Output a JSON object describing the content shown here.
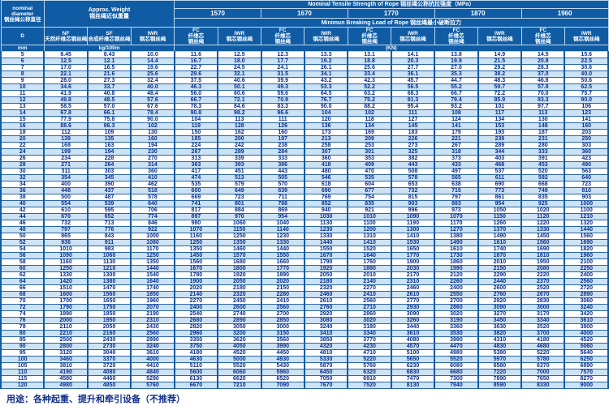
{
  "header": {
    "diameter": {
      "en1": "nominal",
      "en2": "diameter",
      "zh": "钢丝绳公称直径",
      "symbol": "D",
      "unit": "mm"
    },
    "weight": {
      "en": "Approx. Weight",
      "zh": "钢丝绳近似重量",
      "unit": "kg/100m",
      "columns": [
        {
          "abbr": "NF",
          "zh": "天然纤维芯钢丝绳"
        },
        {
          "abbr": "SF",
          "zh": "合成纤维芯钢丝绳"
        },
        {
          "abbr": "IWR",
          "zh": "钢芯钢丝绳"
        }
      ]
    },
    "strength": {
      "title": "Nominal Tensile Strength of Rope 钢丝绳公称抗拉强度（MPa）",
      "breaking": "Minimun Breaking Load of Rope 钢丝绳最小破断拉力",
      "unit": "(KN)",
      "grades": [
        "1570",
        "1670",
        "1770",
        "1870",
        "1960"
      ],
      "sub": [
        {
          "abbr": "FC",
          "lines": [
            "纤维芯",
            "钢丝绳"
          ]
        },
        {
          "abbr": "IWR",
          "lines": [
            "钢芯钢丝绳"
          ]
        }
      ]
    }
  },
  "table": {
    "column_order": [
      "D",
      "NF",
      "SF",
      "IWR",
      "1570-FC",
      "1570-IWR",
      "1670-FC",
      "1670-IWR",
      "1770-FC",
      "1770-IWR",
      "1870-FC",
      "1870-IWR",
      "1960-FC",
      "1960-IWR"
    ],
    "rows": [
      [
        "5",
        "8.45",
        "8.43",
        "10.0",
        "11.6",
        "12.5",
        "12.3",
        "13.3",
        "13.1",
        "14.1",
        "13.8",
        "14.9",
        "14.5",
        "15.6"
      ],
      [
        "6",
        "12.5",
        "12.1",
        "14.4",
        "16.7",
        "18.0",
        "17.7",
        "19.2",
        "18.8",
        "20.3",
        "19.9",
        "21.5",
        "20.8",
        "22.5"
      ],
      [
        "7",
        "17.0",
        "16.5",
        "19.6",
        "22.7",
        "24.5",
        "24.1",
        "26.1",
        "25.6",
        "27.7",
        "27.0",
        "29.2",
        "28.3",
        "30.6"
      ],
      [
        "8",
        "22.1",
        "21.6",
        "25.6",
        "29.6",
        "32.1",
        "31.5",
        "34.1",
        "33.4",
        "36.1",
        "35.3",
        "38.2",
        "37.0",
        "40.0"
      ],
      [
        "9",
        "28.0",
        "27.3",
        "32.4",
        "37.5",
        "40.6",
        "39.9",
        "43.2",
        "42.3",
        "45.7",
        "44.7",
        "48.3",
        "46.8",
        "50.6"
      ],
      [
        "10",
        "34.6",
        "33.7",
        "40.0",
        "46.3",
        "50.1",
        "49.3",
        "53.3",
        "52.2",
        "56.5",
        "55.2",
        "59.7",
        "57.8",
        "62.5"
      ],
      [
        "11",
        "41.9",
        "40.8",
        "48.4",
        "56.0",
        "60.6",
        "59.6",
        "64.5",
        "63.2",
        "68.3",
        "66.7",
        "72.2",
        "70.0",
        "75.7"
      ],
      [
        "12",
        "49.8",
        "48.5",
        "57.6",
        "66.7",
        "72.1",
        "70.9",
        "76.7",
        "75.2",
        "81.3",
        "79.4",
        "85.9",
        "83.3",
        "90.0"
      ],
      [
        "13",
        "58.5",
        "57.0",
        "67.6",
        "78.3",
        "84.6",
        "83.3",
        "90.0",
        "88.2",
        "95.4",
        "93.2",
        "101",
        "97.7",
        "106"
      ],
      [
        "14",
        "67.8",
        "66.1",
        "78.4",
        "90.8",
        "98.2",
        "96.6",
        "104",
        "102",
        "111",
        "108",
        "117",
        "113",
        "123"
      ],
      [
        "15",
        "77.9",
        "75.8",
        "90.0",
        "104",
        "113",
        "111",
        "120",
        "118",
        "127",
        "124",
        "134",
        "130",
        "141"
      ],
      [
        "16",
        "88.6",
        "86.3",
        "102",
        "119",
        "128",
        "126",
        "136",
        "134",
        "145",
        "141",
        "153",
        "148",
        "160"
      ],
      [
        "18",
        "112",
        "109",
        "130",
        "150",
        "162",
        "160",
        "173",
        "169",
        "183",
        "179",
        "193",
        "187",
        "203"
      ],
      [
        "20",
        "138",
        "135",
        "160",
        "185",
        "200",
        "197",
        "213",
        "209",
        "226",
        "221",
        "239",
        "231",
        "250"
      ],
      [
        "22",
        "168",
        "163",
        "194",
        "224",
        "242",
        "238",
        "258",
        "253",
        "273",
        "267",
        "289",
        "280",
        "303"
      ],
      [
        "24",
        "199",
        "194",
        "230",
        "267",
        "289",
        "284",
        "307",
        "301",
        "325",
        "318",
        "344",
        "333",
        "360"
      ],
      [
        "26",
        "234",
        "228",
        "270",
        "313",
        "339",
        "333",
        "360",
        "353",
        "382",
        "373",
        "403",
        "391",
        "423"
      ],
      [
        "28",
        "271",
        "264",
        "314",
        "363",
        "393",
        "386",
        "418",
        "409",
        "443",
        "433",
        "468",
        "453",
        "490"
      ],
      [
        "30",
        "311",
        "303",
        "360",
        "417",
        "451",
        "443",
        "480",
        "470",
        "508",
        "497",
        "537",
        "520",
        "563"
      ],
      [
        "32",
        "354",
        "345",
        "410",
        "474",
        "513",
        "505",
        "546",
        "535",
        "578",
        "565",
        "611",
        "592",
        "640"
      ],
      [
        "34",
        "400",
        "390",
        "462",
        "535",
        "579",
        "570",
        "618",
        "604",
        "653",
        "638",
        "690",
        "668",
        "723"
      ],
      [
        "36",
        "448",
        "437",
        "518",
        "600",
        "649",
        "639",
        "690",
        "677",
        "732",
        "715",
        "773",
        "749",
        "810"
      ],
      [
        "38",
        "500",
        "487",
        "578",
        "669",
        "723",
        "711",
        "769",
        "754",
        "815",
        "797",
        "861",
        "835",
        "903"
      ],
      [
        "40",
        "554",
        "539",
        "640",
        "741",
        "801",
        "788",
        "852",
        "835",
        "903",
        "883",
        "954",
        "925",
        "1000"
      ],
      [
        "42",
        "610",
        "595",
        "706",
        "817",
        "884",
        "869",
        "940",
        "921",
        "996",
        "973",
        "1050",
        "1020",
        "1100"
      ],
      [
        "44",
        "670",
        "652",
        "774",
        "897",
        "970",
        "954",
        "1030",
        "1010",
        "1090",
        "1070",
        "1150",
        "1120",
        "1210"
      ],
      [
        "46",
        "732",
        "713",
        "846",
        "980",
        "1060",
        "1040",
        "1130",
        "1100",
        "1190",
        "1170",
        "1260",
        "1220",
        "1320"
      ],
      [
        "48",
        "797",
        "776",
        "922",
        "1070",
        "1150",
        "1140",
        "1230",
        "1200",
        "1300",
        "1270",
        "1370",
        "1330",
        "1440"
      ],
      [
        "50",
        "865",
        "843",
        "1000",
        "1160",
        "1250",
        "1230",
        "1330",
        "1310",
        "1410",
        "1380",
        "1490",
        "1450",
        "1560"
      ],
      [
        "52",
        "936",
        "911",
        "1080",
        "1250",
        "1350",
        "1330",
        "1440",
        "1410",
        "1530",
        "1490",
        "1610",
        "1560",
        "1690"
      ],
      [
        "54",
        "1010",
        "983",
        "1170",
        "1350",
        "1460",
        "1440",
        "1550",
        "1520",
        "1650",
        "1610",
        "1740",
        "1690",
        "1820"
      ],
      [
        "56",
        "1090",
        "1060",
        "1250",
        "1450",
        "1570",
        "1550",
        "1670",
        "1640",
        "1770",
        "1730",
        "1870",
        "1810",
        "1960"
      ],
      [
        "58",
        "1160",
        "1130",
        "1350",
        "1560",
        "1680",
        "1660",
        "1790",
        "1760",
        "1900",
        "1860",
        "2010",
        "1950",
        "2100"
      ],
      [
        "60",
        "1250",
        "1210",
        "1440",
        "1670",
        "1800",
        "1770",
        "1920",
        "1880",
        "2030",
        "1990",
        "2150",
        "2080",
        "2250"
      ],
      [
        "62",
        "1330",
        "1300",
        "1540",
        "1780",
        "1920",
        "1890",
        "2050",
        "2010",
        "2170",
        "2120",
        "2290",
        "2220",
        "2400"
      ],
      [
        "64",
        "1420",
        "1380",
        "1640",
        "1900",
        "2050",
        "2020",
        "2180",
        "2140",
        "2310",
        "2260",
        "2440",
        "2370",
        "2560"
      ],
      [
        "66",
        "1510",
        "1470",
        "1740",
        "2020",
        "2180",
        "2150",
        "2320",
        "2270",
        "2460",
        "2400",
        "2600",
        "2520",
        "2720"
      ],
      [
        "68",
        "1600",
        "1560",
        "1850",
        "2140",
        "2320",
        "2280",
        "2460",
        "2410",
        "2610",
        "2550",
        "2760",
        "2670",
        "2890"
      ],
      [
        "70",
        "1700",
        "1650",
        "1960",
        "2270",
        "2450",
        "2410",
        "2610",
        "2560",
        "2770",
        "2700",
        "2920",
        "2830",
        "3060"
      ],
      [
        "72",
        "1790",
        "1750",
        "2070",
        "2400",
        "2600",
        "2560",
        "2760",
        "2710",
        "2930",
        "2860",
        "3090",
        "3000",
        "3240"
      ],
      [
        "74",
        "1890",
        "1850",
        "2190",
        "2540",
        "2740",
        "2700",
        "2920",
        "2860",
        "3090",
        "3020",
        "3270",
        "3170",
        "3420"
      ],
      [
        "76",
        "2000",
        "1950",
        "2310",
        "2680",
        "2890",
        "2850",
        "3080",
        "3020",
        "3260",
        "3190",
        "3450",
        "3340",
        "3610"
      ],
      [
        "78",
        "2110",
        "2050",
        "2430",
        "2820",
        "3050",
        "3000",
        "3240",
        "3180",
        "3440",
        "3360",
        "3630",
        "3520",
        "3800"
      ],
      [
        "80",
        "2210",
        "2160",
        "2560",
        "2960",
        "3200",
        "3150",
        "3410",
        "3340",
        "3610",
        "3530",
        "3820",
        "3700",
        "4000"
      ],
      [
        "85",
        "2500",
        "2430",
        "2890",
        "3350",
        "3620",
        "3560",
        "3850",
        "3770",
        "4080",
        "3990",
        "4310",
        "4180",
        "4520"
      ],
      [
        "90",
        "2800",
        "2730",
        "3240",
        "3750",
        "4050",
        "3990",
        "4320",
        "4230",
        "4570",
        "4470",
        "4830",
        "4680",
        "5060"
      ],
      [
        "95",
        "3120",
        "3040",
        "3610",
        "4180",
        "4520",
        "4450",
        "4810",
        "4710",
        "5100",
        "4980",
        "5380",
        "5220",
        "5640"
      ],
      [
        "100",
        "3460",
        "3370",
        "4000",
        "4630",
        "5000",
        "4930",
        "5330",
        "5220",
        "5650",
        "5520",
        "5970",
        "5780",
        "6250"
      ],
      [
        "105",
        "3810",
        "3720",
        "4410",
        "5110",
        "5520",
        "5430",
        "5870",
        "5760",
        "6230",
        "6080",
        "6580",
        "6370",
        "6890"
      ],
      [
        "110",
        "4190",
        "4080",
        "4840",
        "5600",
        "6060",
        "5960",
        "6450",
        "6320",
        "6830",
        "6680",
        "7220",
        "7000",
        "7570"
      ],
      [
        "115",
        "4580",
        "4460",
        "5290",
        "6130",
        "6620",
        "6520",
        "7050",
        "6910",
        "7470",
        "7300",
        "7890",
        "7650",
        "8270"
      ],
      [
        "120",
        "4980",
        "4850",
        "5760",
        "6670",
        "7210",
        "7090",
        "7670",
        "7520",
        "8130",
        "7940",
        "8590",
        "8330",
        "9000"
      ]
    ]
  },
  "footer": {
    "usage": "用途：各种起重、提升和牵引设备（不推荐）"
  },
  "colors": {
    "table_blue": "#0f5ba4",
    "row_tint": "#cbe3f5",
    "data_text": "#0d2f8e",
    "header_text": "#ffffff"
  }
}
